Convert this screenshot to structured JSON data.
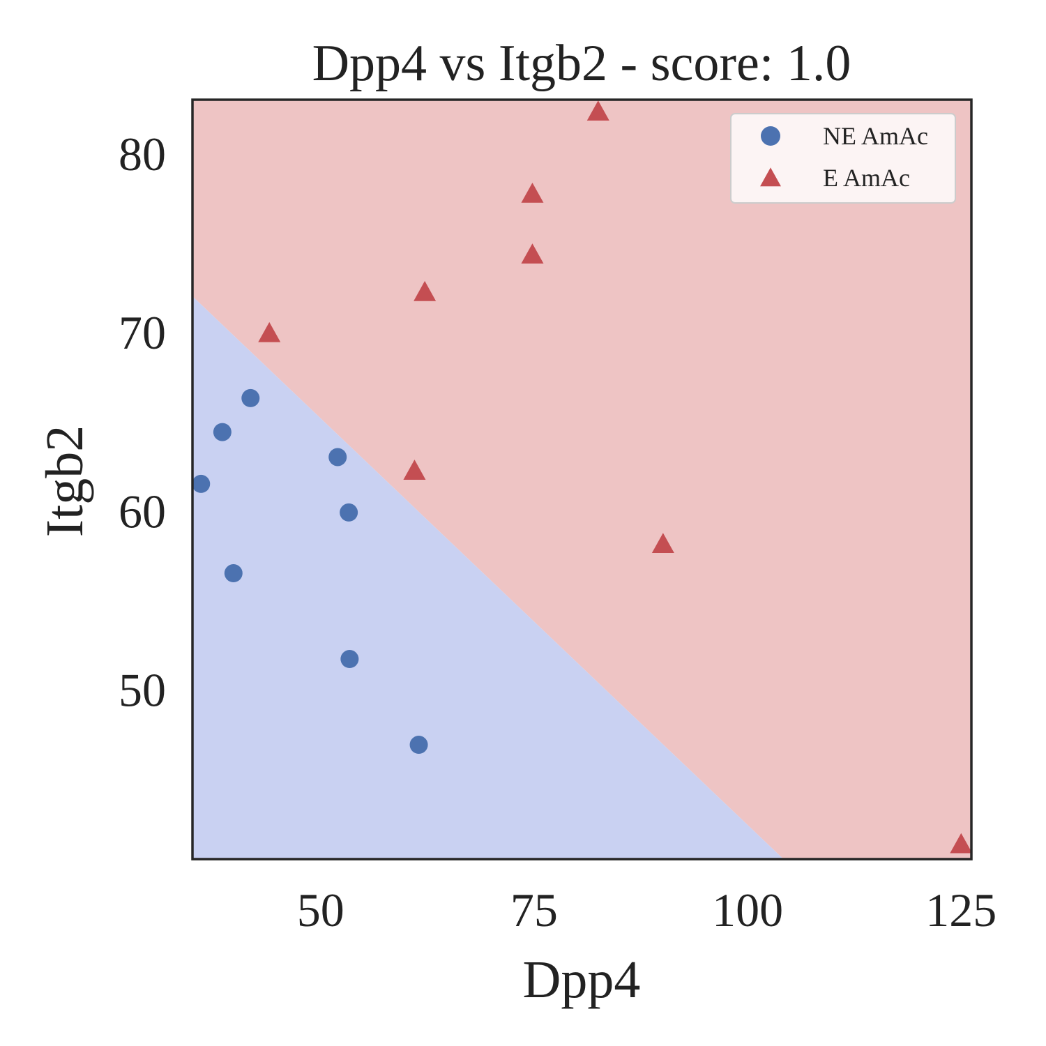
{
  "chart_data": {
    "type": "scatter",
    "title": "Dpp4 vs Itgb2 - score: 1.0",
    "xlabel": "Dpp4",
    "ylabel": "Itgb2",
    "xlim": [
      35,
      126.2
    ],
    "ylim": [
      40.5,
      83
    ],
    "xticks": [
      50,
      75,
      100,
      125
    ],
    "yticks": [
      50,
      60,
      70,
      80
    ],
    "grid": false,
    "legend_position": "top-right",
    "regions": {
      "decision_boundary": [
        [
          35,
          72
        ],
        [
          104.2,
          40.5
        ]
      ],
      "below_color": "#c9d1f2",
      "above_color": "#eec4c4"
    },
    "series": [
      {
        "name": "NE AmAc",
        "marker": "circle",
        "color": "#4c72b0",
        "points": [
          [
            36,
            61.5
          ],
          [
            38.5,
            64.4
          ],
          [
            39.8,
            56.5
          ],
          [
            41.8,
            66.3
          ],
          [
            52,
            63
          ],
          [
            53.3,
            59.9
          ],
          [
            53.4,
            51.7
          ],
          [
            61.5,
            46.9
          ]
        ]
      },
      {
        "name": "E AmAc",
        "marker": "triangle",
        "color": "#c44e52",
        "points": [
          [
            44,
            69.9
          ],
          [
            61,
            62.2
          ],
          [
            62.2,
            72.2
          ],
          [
            74.8,
            74.3
          ],
          [
            74.8,
            77.7
          ],
          [
            82.5,
            82.3
          ],
          [
            90.1,
            58.1
          ],
          [
            125,
            41.3
          ]
        ]
      }
    ]
  }
}
